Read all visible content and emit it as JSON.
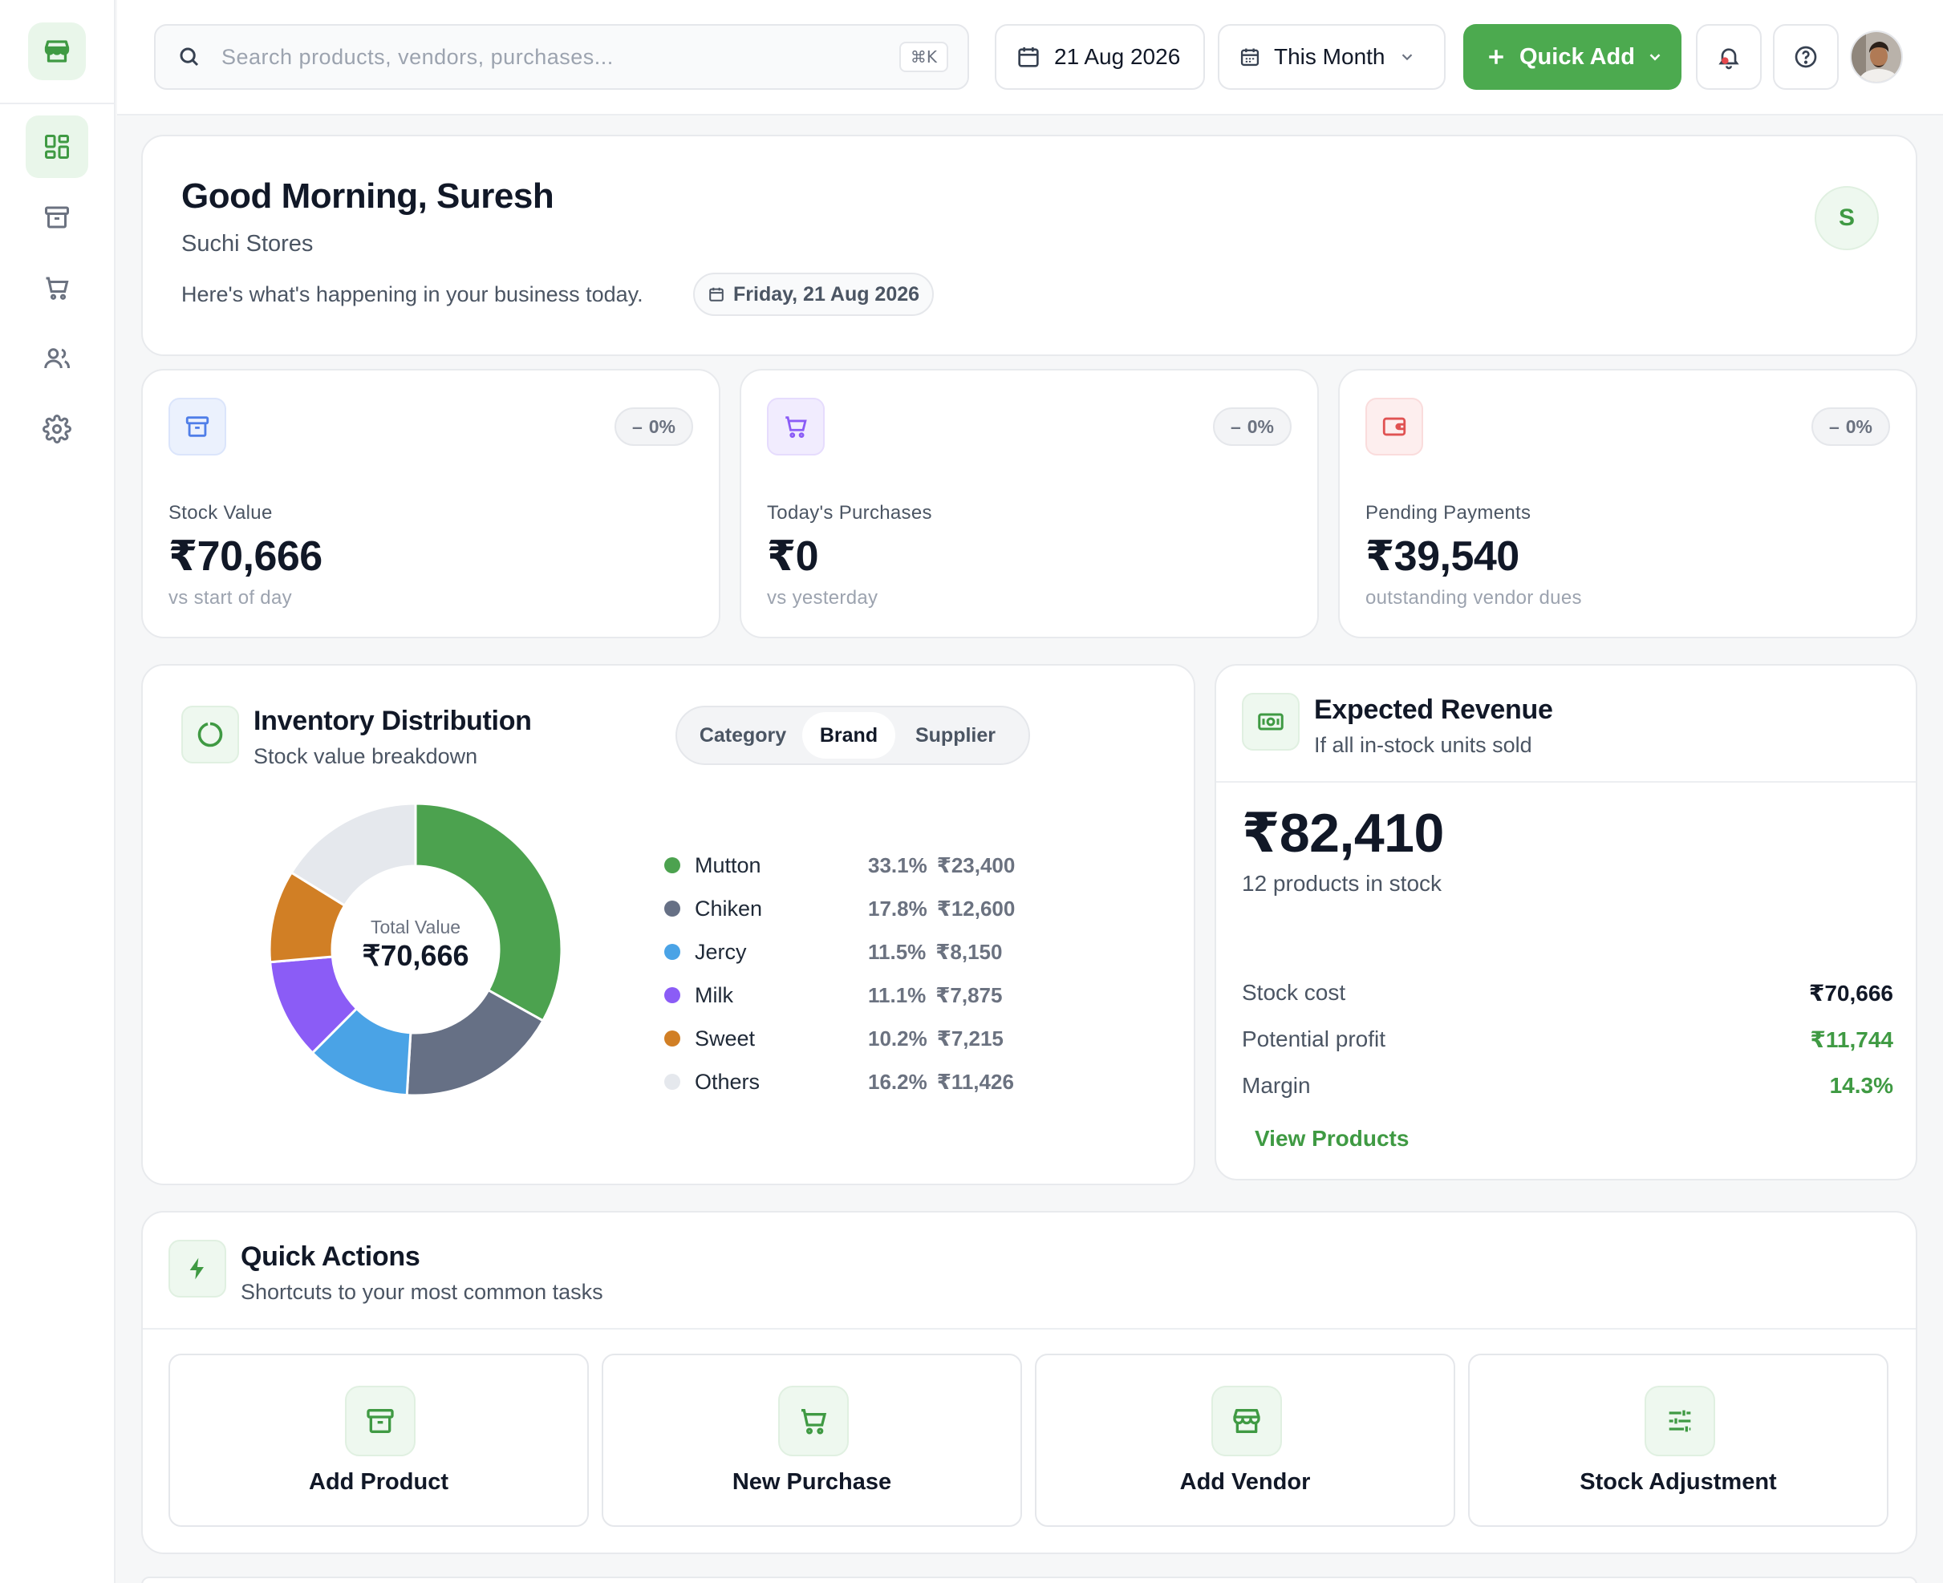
{
  "sidebar": {
    "items": [
      {
        "icon": "dashboard-icon",
        "active": true
      },
      {
        "icon": "archive-box-icon",
        "active": false
      },
      {
        "icon": "cart-icon",
        "active": false
      },
      {
        "icon": "users-icon",
        "active": false
      },
      {
        "icon": "settings-gear-icon",
        "active": false
      }
    ]
  },
  "topbar": {
    "search_placeholder": "Search products, vendors, purchases...",
    "search_shortcut": "⌘K",
    "date": "21 Aug 2026",
    "period": "This Month",
    "quick_add": "Quick Add"
  },
  "greeting": {
    "title": "Good Morning, Suresh",
    "store": "Suchi Stores",
    "subtitle": "Here's what's happening in your business today.",
    "date_pill": "Friday, 21 Aug 2026",
    "initial": "S"
  },
  "stats": [
    {
      "label": "Stock Value",
      "value": "₹70,666",
      "change": "0%",
      "note": "vs start of day",
      "icon": "archive-box-icon",
      "accent": "#4f7ee8"
    },
    {
      "label": "Today's Purchases",
      "value": "₹0",
      "change": "0%",
      "note": "vs yesterday",
      "icon": "cart-icon",
      "accent": "#8b5cf6"
    },
    {
      "label": "Pending Payments",
      "value": "₹39,540",
      "change": "0%",
      "note": "outstanding vendor dues",
      "icon": "wallet-icon",
      "accent": "#e05252"
    }
  ],
  "inventory": {
    "title": "Inventory Distribution",
    "subtitle": "Stock value breakdown",
    "tabs": [
      "Category",
      "Brand",
      "Supplier"
    ],
    "active_tab": "Brand",
    "center_label": "Total Value",
    "center_value": "₹70,666"
  },
  "chart_data": {
    "type": "pie",
    "variant": "donut",
    "categories": [
      "Mutton",
      "Chiken",
      "Jercy",
      "Milk",
      "Sweet",
      "Others"
    ],
    "values": [
      23400,
      12600,
      8150,
      7875,
      7215,
      11426
    ],
    "percent_labels": [
      "33.1%",
      "17.8%",
      "11.5%",
      "11.1%",
      "10.2%",
      "16.2%"
    ],
    "value_labels": [
      "₹23,400",
      "₹12,600",
      "₹8,150",
      "₹7,875",
      "₹7,215",
      "₹11,426"
    ],
    "colors": [
      "#4ca24f",
      "#667085",
      "#4aa3e6",
      "#8b5cf6",
      "#d17f25",
      "#e5e8ed"
    ],
    "legend": "right"
  },
  "revenue": {
    "title": "Expected Revenue",
    "subtitle": "If all in-stock units sold",
    "total": "₹82,410",
    "count": "12 products in stock",
    "rows": [
      {
        "label": "Stock cost",
        "value": "₹70,666",
        "color": "#111827"
      },
      {
        "label": "Potential profit",
        "value": "₹11,744",
        "color": "#3f9a43"
      },
      {
        "label": "Margin",
        "value": "14.3%",
        "color": "#3f9a43"
      }
    ],
    "link": "View Products"
  },
  "quick_actions": {
    "title": "Quick Actions",
    "subtitle": "Shortcuts to your most common tasks",
    "tiles": [
      {
        "label": "Add Product",
        "icon": "archive-box-icon"
      },
      {
        "label": "New Purchase",
        "icon": "cart-icon"
      },
      {
        "label": "Add Vendor",
        "icon": "store-icon"
      },
      {
        "label": "Stock Adjustment",
        "icon": "sliders-icon"
      }
    ]
  }
}
